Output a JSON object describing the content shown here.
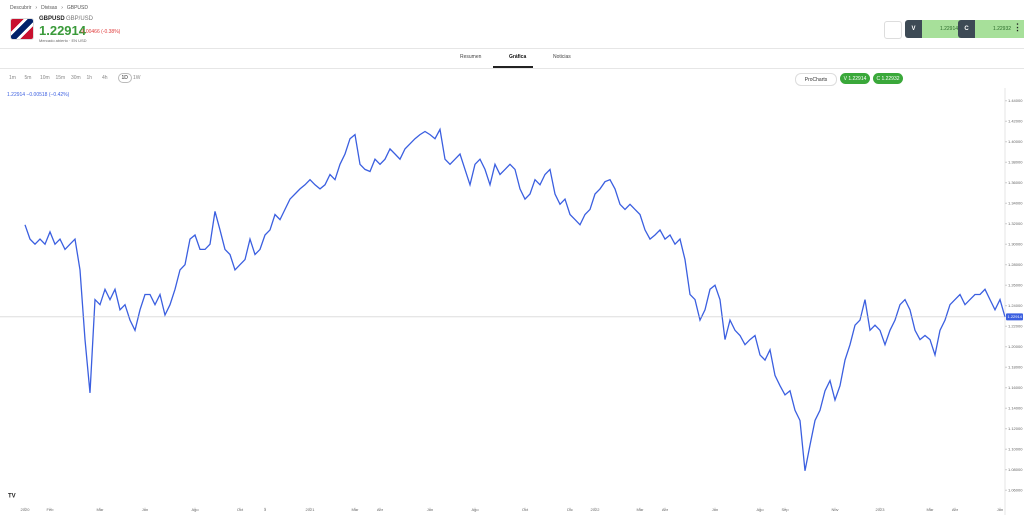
{
  "header": {
    "breadcrumb": [
      "Descubrir",
      "Divisas",
      "GBPUSD"
    ],
    "symbol": "GBPUSD",
    "symbol_name": "GBP/USD",
    "price": "1.22914",
    "change": "-0.00466 (-0.38%)",
    "status": "Mercado abierto · EN USD",
    "sell_label": "V",
    "sell_price": "1.22914",
    "buy_label": "C",
    "buy_price": "1.22932"
  },
  "tabs": [
    "Resumen",
    "Gráfica",
    "Noticias"
  ],
  "toolbar": {
    "intervals": [
      "1m",
      "5m",
      "10m",
      "15m",
      "30m",
      "1h",
      "4h",
      "1D",
      "1W"
    ],
    "procharts": "ProCharts",
    "sell": "V 1.22914",
    "buy": "C 1.22932"
  },
  "chart_data": {
    "type": "line",
    "legend_text": "1.22914 −0.00518 (−0.42%)",
    "color": "#3b5fe0",
    "last_price": 1.22914,
    "values": [
      1.319,
      1.305,
      1.3,
      1.305,
      1.3,
      1.312,
      1.3,
      1.305,
      1.295,
      1.3,
      1.305,
      1.275,
      1.207,
      1.155,
      1.246,
      1.241,
      1.256,
      1.246,
      1.256,
      1.236,
      1.241,
      1.226,
      1.216,
      1.236,
      1.251,
      1.251,
      1.241,
      1.251,
      1.231,
      1.241,
      1.256,
      1.275,
      1.28,
      1.305,
      1.309,
      1.295,
      1.295,
      1.3,
      1.332,
      1.314,
      1.295,
      1.29,
      1.275,
      1.28,
      1.285,
      1.305,
      1.29,
      1.295,
      1.309,
      1.314,
      1.329,
      1.324,
      1.334,
      1.344,
      1.349,
      1.354,
      1.358,
      1.363,
      1.358,
      1.354,
      1.358,
      1.368,
      1.363,
      1.378,
      1.388,
      1.403,
      1.407,
      1.378,
      1.373,
      1.371,
      1.383,
      1.378,
      1.383,
      1.393,
      1.388,
      1.383,
      1.393,
      1.398,
      1.403,
      1.407,
      1.41,
      1.407,
      1.403,
      1.412,
      1.383,
      1.378,
      1.383,
      1.388,
      1.373,
      1.358,
      1.378,
      1.383,
      1.373,
      1.358,
      1.378,
      1.368,
      1.373,
      1.378,
      1.373,
      1.354,
      1.344,
      1.349,
      1.363,
      1.358,
      1.368,
      1.373,
      1.349,
      1.339,
      1.344,
      1.329,
      1.324,
      1.319,
      1.329,
      1.334,
      1.349,
      1.354,
      1.361,
      1.363,
      1.354,
      1.339,
      1.334,
      1.339,
      1.334,
      1.329,
      1.314,
      1.305,
      1.309,
      1.314,
      1.305,
      1.309,
      1.3,
      1.305,
      1.285,
      1.251,
      1.246,
      1.226,
      1.236,
      1.256,
      1.26,
      1.246,
      1.207,
      1.226,
      1.216,
      1.211,
      1.202,
      1.207,
      1.211,
      1.192,
      1.187,
      1.197,
      1.172,
      1.162,
      1.153,
      1.157,
      1.138,
      1.128,
      1.079,
      1.104,
      1.128,
      1.138,
      1.157,
      1.167,
      1.148,
      1.162,
      1.187,
      1.202,
      1.221,
      1.226,
      1.246,
      1.216,
      1.221,
      1.216,
      1.202,
      1.216,
      1.226,
      1.241,
      1.246,
      1.236,
      1.216,
      1.207,
      1.211,
      1.207,
      1.192,
      1.216,
      1.226,
      1.241,
      1.246,
      1.251,
      1.241,
      1.246,
      1.251,
      1.251,
      1.256,
      1.246,
      1.236,
      1.246,
      1.229
    ],
    "xlim": [
      0,
      196
    ],
    "xticks": [
      {
        "value": 0,
        "label": "2020"
      },
      {
        "value": 5,
        "label": "Feb"
      },
      {
        "value": 15,
        "label": "Mar"
      },
      {
        "value": 24,
        "label": "Jun"
      },
      {
        "value": 34,
        "label": "Ago"
      },
      {
        "value": 43,
        "label": "Oct"
      },
      {
        "value": 48,
        "label": "3"
      },
      {
        "value": 57,
        "label": "2021"
      },
      {
        "value": 66,
        "label": "Mar"
      },
      {
        "value": 71,
        "label": "Abr"
      },
      {
        "value": 81,
        "label": "Jun"
      },
      {
        "value": 90,
        "label": "Ago"
      },
      {
        "value": 100,
        "label": "Oct"
      },
      {
        "value": 109,
        "label": "Dic"
      },
      {
        "value": 114,
        "label": "2022"
      },
      {
        "value": 123,
        "label": "Mar"
      },
      {
        "value": 128,
        "label": "Abr"
      },
      {
        "value": 138,
        "label": "Jun"
      },
      {
        "value": 147,
        "label": "Ago"
      },
      {
        "value": 152,
        "label": "Sep"
      },
      {
        "value": 162,
        "label": "Nov"
      },
      {
        "value": 171,
        "label": "2023"
      },
      {
        "value": 181,
        "label": "Mar"
      },
      {
        "value": 186,
        "label": "Abr"
      },
      {
        "value": 195,
        "label": "Jun"
      }
    ],
    "ylim": [
      1.045,
      1.45
    ],
    "yticks": [
      {
        "value": 1.06,
        "label": "1.06000"
      },
      {
        "value": 1.08,
        "label": "1.08000"
      },
      {
        "value": 1.1,
        "label": "1.10000"
      },
      {
        "value": 1.12,
        "label": "1.12000"
      },
      {
        "value": 1.14,
        "label": "1.14000"
      },
      {
        "value": 1.16,
        "label": "1.16000"
      },
      {
        "value": 1.18,
        "label": "1.18000"
      },
      {
        "value": 1.2,
        "label": "1.20000"
      },
      {
        "value": 1.22,
        "label": "1.22000"
      },
      {
        "value": 1.24,
        "label": "1.24000"
      },
      {
        "value": 1.26,
        "label": "1.26000"
      },
      {
        "value": 1.28,
        "label": "1.28000"
      },
      {
        "value": 1.3,
        "label": "1.30000"
      },
      {
        "value": 1.32,
        "label": "1.32000"
      },
      {
        "value": 1.34,
        "label": "1.34000"
      },
      {
        "value": 1.36,
        "label": "1.36000"
      },
      {
        "value": 1.38,
        "label": "1.38000"
      },
      {
        "value": 1.4,
        "label": "1.40000"
      },
      {
        "value": 1.42,
        "label": "1.42000"
      },
      {
        "value": 1.44,
        "label": "1.44000"
      }
    ],
    "grid": false
  }
}
